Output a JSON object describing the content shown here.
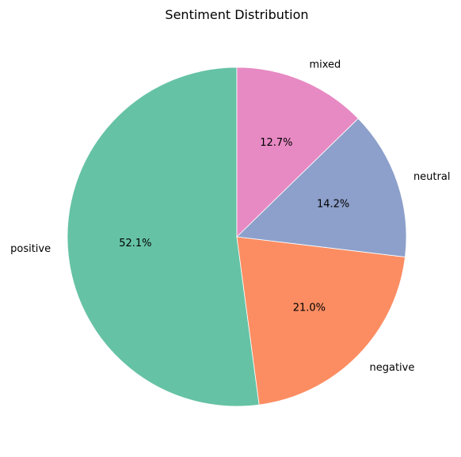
{
  "chart_data": {
    "type": "pie",
    "title": "Sentiment Distribution",
    "categories": [
      "positive",
      "negative",
      "neutral",
      "mixed"
    ],
    "values": [
      52.1,
      21.0,
      14.2,
      12.7
    ],
    "value_labels": [
      "52.1%",
      "21.0%",
      "14.2%",
      "12.7%"
    ],
    "colors": [
      "#66c2a5",
      "#fc8d62",
      "#8da0cb",
      "#e78ac3"
    ],
    "start_angle_deg": 90,
    "direction": "counterclockwise",
    "legend": "none"
  }
}
